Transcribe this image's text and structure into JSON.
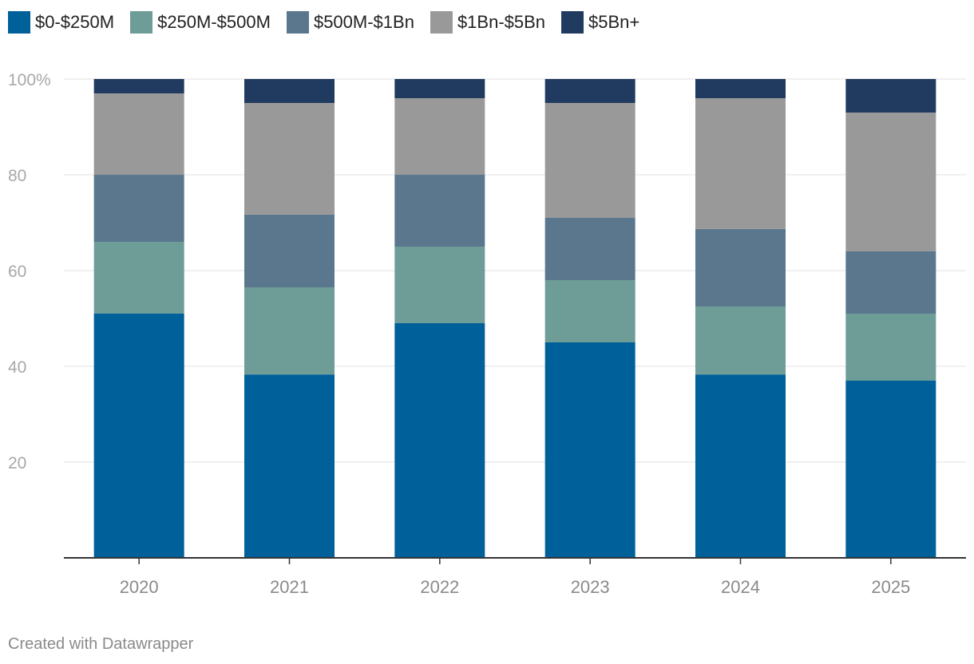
{
  "chart_data": {
    "type": "bar",
    "stacked": true,
    "categories": [
      "2020",
      "2021",
      "2022",
      "2023",
      "2024",
      "2025"
    ],
    "series": [
      {
        "name": "$0-$250M",
        "color": "#00609a",
        "values": [
          51,
          38.3,
          49,
          45,
          38.3,
          37
        ]
      },
      {
        "name": "$250M-$500M",
        "color": "#6e9c97",
        "values": [
          15,
          18.2,
          16,
          13,
          14.2,
          14
        ]
      },
      {
        "name": "$500M-$1Bn",
        "color": "#5a778e",
        "values": [
          14,
          15.2,
          15,
          13,
          16.2,
          13
        ]
      },
      {
        "name": "$1Bn-$5Bn",
        "color": "#999999",
        "values": [
          17,
          23.3,
          16,
          24,
          27.3,
          29
        ]
      },
      {
        "name": "$5Bn+",
        "color": "#213a5f",
        "values": [
          3,
          5,
          4,
          5,
          4,
          7
        ]
      }
    ],
    "yticks": [
      "20",
      "40",
      "60",
      "80",
      "100%"
    ],
    "ylim": [
      0,
      100
    ],
    "grid": true,
    "legend": "top-left"
  },
  "footer": "Created with Datawrapper"
}
